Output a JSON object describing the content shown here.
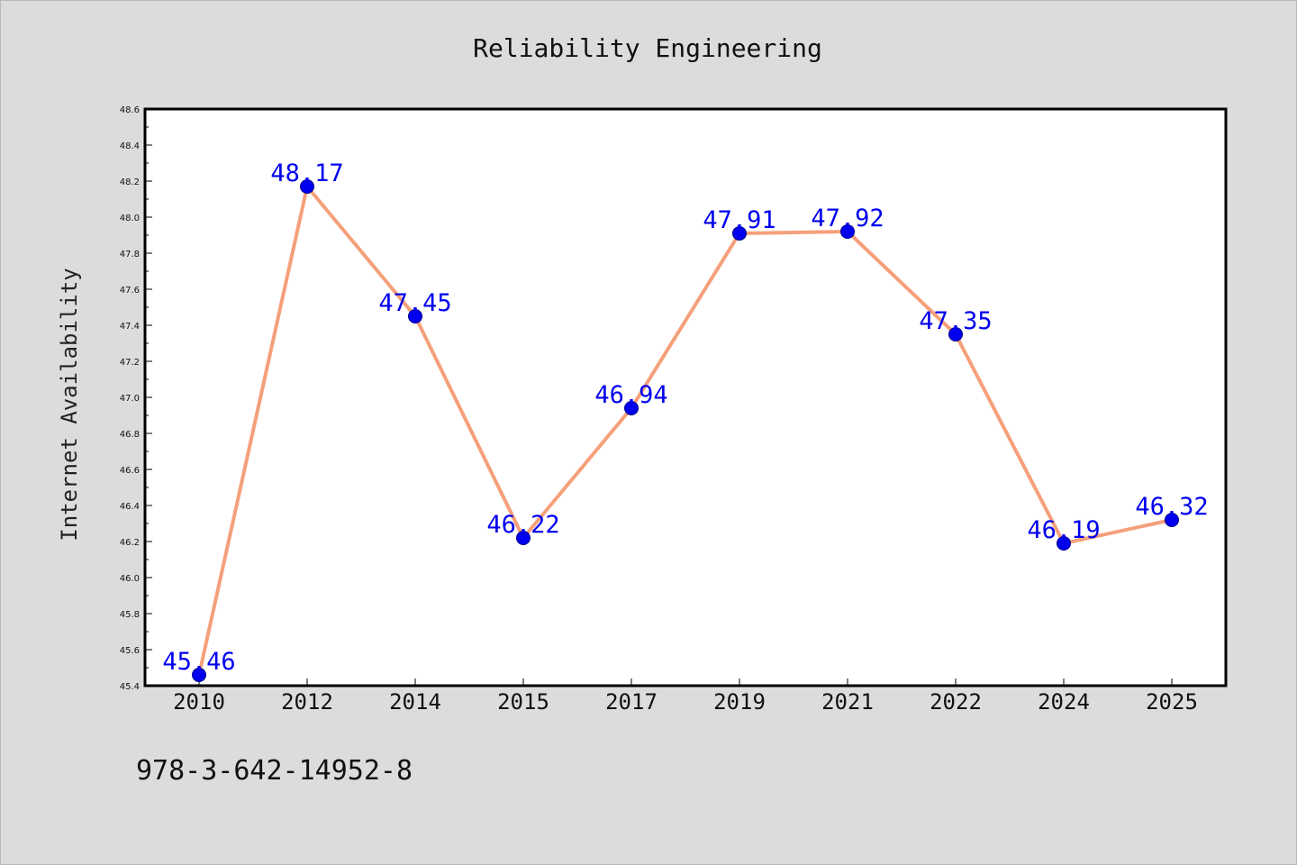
{
  "colors": {
    "background": "#dcdcdc",
    "plot_background": "#ffffff",
    "line": "#f5a07a",
    "marker": "#0000ee",
    "data_label": "#0000ee"
  },
  "footnote": "978-3-642-14952-8",
  "chart_data": {
    "type": "line",
    "title": "Reliability Engineering",
    "xlabel": "",
    "ylabel": "Internet Availability",
    "categories": [
      "2010",
      "2012",
      "2014",
      "2015",
      "2017",
      "2019",
      "2021",
      "2022",
      "2024",
      "2025"
    ],
    "series": [
      {
        "values": [
          45.46,
          48.17,
          47.45,
          46.22,
          46.94,
          47.91,
          47.92,
          47.35,
          46.19,
          46.32
        ],
        "data_labels": [
          "45.46",
          "48.17",
          "47.45",
          "46.22",
          "46.94",
          "47.91",
          "47.92",
          "47.35",
          "46.19",
          "46.32"
        ]
      }
    ],
    "ylim": [
      45.4,
      48.6
    ],
    "yticks": [
      "45.4",
      "45.6",
      "45.8",
      "46.0",
      "46.2",
      "46.4",
      "46.6",
      "46.8",
      "47.0",
      "47.2",
      "47.4",
      "47.6",
      "47.8",
      "48.0",
      "48.2",
      "48.4",
      "48.6"
    ],
    "grid": false,
    "legend": "none"
  }
}
